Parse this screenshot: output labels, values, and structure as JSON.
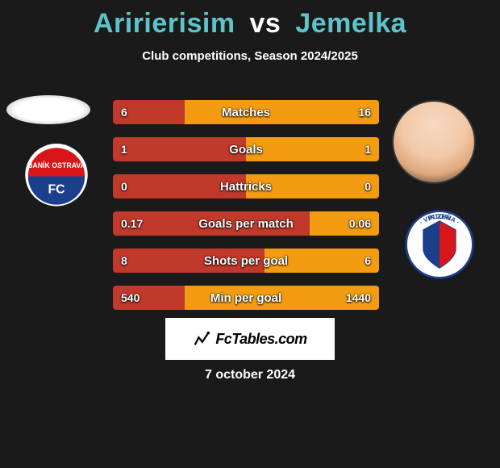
{
  "title": {
    "player1": "Aririerisim",
    "vs": "vs",
    "player2": "Jemelka",
    "color1": "#5ec4c9",
    "vs_color": "#ffffff",
    "color2": "#5ec4c9",
    "fontsize": 34
  },
  "subtitle": "Club competitions, Season 2024/2025",
  "colors": {
    "left": "#c0392b",
    "right": "#f39c12",
    "background": "#1a1a1a",
    "text": "#ffffff"
  },
  "bars": [
    {
      "label": "Matches",
      "left": "6",
      "right": "16",
      "left_pct": 27,
      "right_pct": 73
    },
    {
      "label": "Goals",
      "left": "1",
      "right": "1",
      "left_pct": 50,
      "right_pct": 50
    },
    {
      "label": "Hattricks",
      "left": "0",
      "right": "0",
      "left_pct": 50,
      "right_pct": 50
    },
    {
      "label": "Goals per match",
      "left": "0.17",
      "right": "0.06",
      "left_pct": 74,
      "right_pct": 26
    },
    {
      "label": "Shots per goal",
      "left": "8",
      "right": "6",
      "left_pct": 57,
      "right_pct": 43
    },
    {
      "label": "Min per goal",
      "left": "540",
      "right": "1440",
      "left_pct": 27,
      "right_pct": 73
    }
  ],
  "footer_brand": "FcTables.com",
  "date": "7 october 2024",
  "crest_left": {
    "name": "Baník Ostrava",
    "bg": "#ffffff",
    "top_color": "#d8161a",
    "bottom_color": "#1b3f8b",
    "text_color": "#ffffff"
  },
  "crest_right": {
    "name": "Viktoria Plzeň",
    "bg": "#ffffff",
    "stripe1": "#d8161a",
    "stripe2": "#1b3f8b",
    "text_color": "#1b3f8b"
  }
}
